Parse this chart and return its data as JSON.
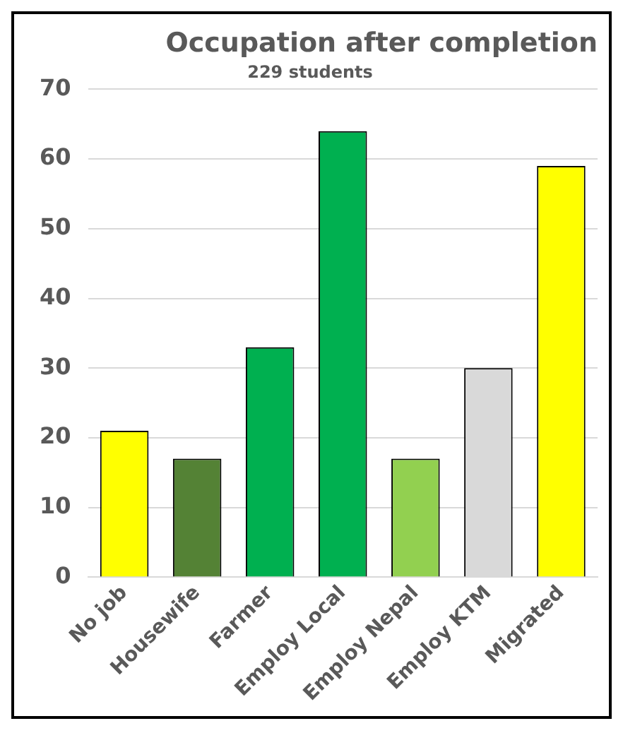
{
  "chart_data": {
    "type": "bar",
    "title": "Occupation after completion",
    "subtitle": "229 students",
    "categories": [
      "No job",
      "Housewife",
      "Farmer",
      "Employ Local",
      "Employ Nepal",
      "Employ KTM",
      "Migrated"
    ],
    "values": [
      21,
      17,
      33,
      64,
      17,
      30,
      59
    ],
    "colors": [
      "#ffff00",
      "#548235",
      "#00b050",
      "#00b050",
      "#92d050",
      "#d9d9d9",
      "#ffff00"
    ],
    "ylim": [
      0,
      70
    ],
    "yticks": [
      0,
      10,
      20,
      30,
      40,
      50,
      60,
      70
    ],
    "grid": "y",
    "legend": false
  }
}
